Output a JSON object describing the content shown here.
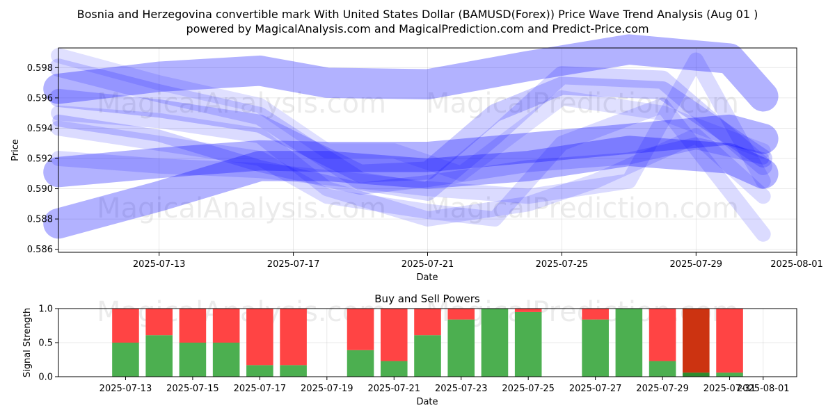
{
  "title_line1": "Bosnia and Herzegovina convertible mark With United States Dollar (BAMUSD(Forex)) Price Wave Trend Analysis (Aug 01 )",
  "title_line2": "powered by MagicalAnalysis.com and MagicalPrediction.com and Predict-Price.com",
  "watermarks": [
    "MagicalAnalysis.com",
    "MagicalPrediction.com"
  ],
  "chart_data": [
    {
      "type": "line",
      "xlabel": "Date",
      "ylabel": "Price",
      "x_ticks": [
        "2025-07-13",
        "2025-07-17",
        "2025-07-21",
        "2025-07-25",
        "2025-07-29",
        "2025-08-01"
      ],
      "y_ticks": [
        "0.586",
        "0.588",
        "0.590",
        "0.592",
        "0.594",
        "0.596",
        "0.598"
      ],
      "xlim": [
        "2025-07-10",
        "2025-08-01"
      ],
      "ylim": [
        0.5858,
        0.5993
      ],
      "grid": true,
      "band_color": "#0000ff",
      "bands": [
        {
          "x": [
            "2025-07-10",
            "2025-07-13",
            "2025-07-16",
            "2025-07-18",
            "2025-07-21",
            "2025-07-24",
            "2025-07-27",
            "2025-07-30",
            "2025-07-31"
          ],
          "y": [
            0.5966,
            0.5974,
            0.5978,
            0.597,
            0.5969,
            0.5981,
            0.5992,
            0.5986,
            0.5961
          ],
          "width": 0.002,
          "alpha": 0.3
        },
        {
          "x": [
            "2025-07-10",
            "2025-07-13",
            "2025-07-16",
            "2025-07-18",
            "2025-07-21",
            "2025-07-24",
            "2025-07-27",
            "2025-07-30",
            "2025-07-31"
          ],
          "y": [
            0.5911,
            0.5917,
            0.5922,
            0.5921,
            0.5921,
            0.5927,
            0.5933,
            0.5939,
            0.5933
          ],
          "width": 0.002,
          "alpha": 0.3
        },
        {
          "x": [
            "2025-07-10",
            "2025-07-13",
            "2025-07-16",
            "2025-07-18",
            "2025-07-21",
            "2025-07-24",
            "2025-07-27",
            "2025-07-30",
            "2025-07-31"
          ],
          "y": [
            0.5877,
            0.5895,
            0.5915,
            0.5915,
            0.591,
            0.5915,
            0.5925,
            0.592,
            0.591
          ],
          "width": 0.002,
          "alpha": 0.3
        },
        {
          "x": [
            "2025-07-10",
            "2025-07-13",
            "2025-07-16",
            "2025-07-19",
            "2025-07-21",
            "2025-07-23",
            "2025-07-25",
            "2025-07-28",
            "2025-07-31"
          ],
          "y": [
            0.596,
            0.5953,
            0.5943,
            0.591,
            0.5912,
            0.595,
            0.5968,
            0.5965,
            0.592
          ],
          "width": 0.0012,
          "alpha": 0.2
        },
        {
          "x": [
            "2025-07-10",
            "2025-07-13",
            "2025-07-16",
            "2025-07-19",
            "2025-07-21",
            "2025-07-23",
            "2025-07-25",
            "2025-07-28",
            "2025-07-31"
          ],
          "y": [
            0.598,
            0.5963,
            0.5948,
            0.5905,
            0.5898,
            0.5935,
            0.5975,
            0.5972,
            0.5915
          ],
          "width": 0.0012,
          "alpha": 0.16
        },
        {
          "x": [
            "2025-07-10",
            "2025-07-13",
            "2025-07-16",
            "2025-07-18",
            "2025-07-21",
            "2025-07-24",
            "2025-07-26",
            "2025-07-29",
            "2025-07-31"
          ],
          "y": [
            0.595,
            0.5945,
            0.5935,
            0.59,
            0.588,
            0.589,
            0.5905,
            0.5935,
            0.5895
          ],
          "width": 0.001,
          "alpha": 0.14
        },
        {
          "x": [
            "2025-07-10",
            "2025-07-13",
            "2025-07-16",
            "2025-07-18",
            "2025-07-21",
            "2025-07-23",
            "2025-07-25",
            "2025-07-28",
            "2025-07-31"
          ],
          "y": [
            0.594,
            0.593,
            0.592,
            0.5895,
            0.5885,
            0.588,
            0.593,
            0.5955,
            0.587
          ],
          "width": 0.001,
          "alpha": 0.14
        },
        {
          "x": [
            "2025-07-10",
            "2025-07-13",
            "2025-07-16",
            "2025-07-18",
            "2025-07-20",
            "2025-07-22",
            "2025-07-25",
            "2025-07-28",
            "2025-07-31"
          ],
          "y": [
            0.5988,
            0.597,
            0.5955,
            0.5925,
            0.5925,
            0.591,
            0.596,
            0.595,
            0.5925
          ],
          "width": 0.001,
          "alpha": 0.12
        },
        {
          "x": [
            "2025-07-10",
            "2025-07-13",
            "2025-07-16",
            "2025-07-19",
            "2025-07-21",
            "2025-07-24",
            "2025-07-27",
            "2025-07-29",
            "2025-07-31"
          ],
          "y": [
            0.592,
            0.5915,
            0.5912,
            0.5905,
            0.59,
            0.5895,
            0.5905,
            0.5985,
            0.5905
          ],
          "width": 0.001,
          "alpha": 0.14
        },
        {
          "x": [
            "2025-07-10",
            "2025-07-13",
            "2025-07-16",
            "2025-07-19",
            "2025-07-21",
            "2025-07-24",
            "2025-07-27",
            "2025-07-29",
            "2025-07-31"
          ],
          "y": [
            0.5945,
            0.5935,
            0.5915,
            0.59,
            0.5905,
            0.5915,
            0.592,
            0.593,
            0.592
          ],
          "width": 0.0008,
          "alpha": 0.18
        }
      ]
    },
    {
      "type": "bar",
      "title": "Buy and Sell Powers",
      "xlabel": "Date",
      "ylabel": "Signal Strength",
      "ylim": [
        0,
        1
      ],
      "y_ticks": [
        "0.0",
        "0.5",
        "1.0"
      ],
      "x_ticks": [
        "2025-07-13",
        "2025-07-15",
        "2025-07-17",
        "2025-07-19",
        "2025-07-21",
        "2025-07-23",
        "2025-07-25",
        "2025-07-27",
        "2025-07-29",
        "2025-07-31",
        "2025-08-01"
      ],
      "xlim": [
        "2025-07-11",
        "2025-08-02"
      ],
      "buy_color": "#4caf50",
      "sell_color": "#ff4444",
      "dates": [
        "2025-07-13",
        "2025-07-14",
        "2025-07-15",
        "2025-07-16",
        "2025-07-17",
        "2025-07-18",
        "2025-07-20",
        "2025-07-21",
        "2025-07-22",
        "2025-07-23",
        "2025-07-24",
        "2025-07-25",
        "2025-07-27",
        "2025-07-28",
        "2025-07-29",
        "2025-07-30",
        "2025-07-31"
      ],
      "buy": [
        0.5,
        0.61,
        0.5,
        0.5,
        0.17,
        0.17,
        0.39,
        0.23,
        0.61,
        0.84,
        1.0,
        0.95,
        0.84,
        1.0,
        0.23,
        0.06,
        0.06
      ],
      "sell": [
        0.5,
        0.39,
        0.5,
        0.5,
        0.83,
        0.83,
        0.61,
        0.77,
        0.39,
        0.16,
        0.0,
        0.05,
        0.16,
        0.0,
        0.77,
        0.94,
        0.94
      ],
      "highlight_dates": [
        "2025-07-30"
      ],
      "highlight_buy_color": "#2e8b2e",
      "highlight_sell_color": "#cc3311"
    }
  ]
}
